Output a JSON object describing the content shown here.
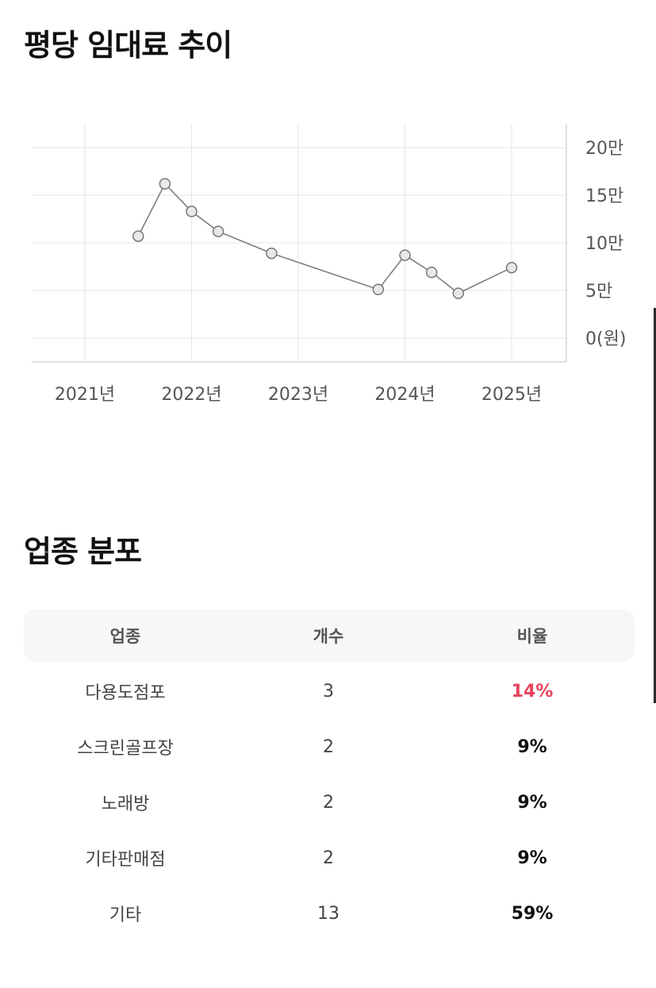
{
  "rent_section": {
    "title": "평당 임대료 추이"
  },
  "chart_data": {
    "type": "line",
    "x_tick_labels": [
      "2021년",
      "2022년",
      "2023년",
      "2024년",
      "2025년"
    ],
    "y_tick_labels": [
      "20만",
      "15만",
      "10만",
      "5만",
      "0(원)"
    ],
    "y_ticks": [
      200000,
      150000,
      100000,
      50000,
      0
    ],
    "y_axis_position": "right",
    "grid": true,
    "x": [
      "2021-07",
      "2021-10",
      "2022-01",
      "2022-04",
      "2022-10",
      "2023-10",
      "2024-01",
      "2024-04",
      "2024-07",
      "2025-01"
    ],
    "values": [
      107000,
      162000,
      133000,
      112000,
      89000,
      51000,
      87000,
      69000,
      47000,
      74000
    ],
    "colors": {
      "line": "#777777",
      "point_fill": "#e8e8e8",
      "grid": "#e6e6e6"
    }
  },
  "distribution_section": {
    "title": "업종 분포",
    "columns": [
      "업종",
      "개수",
      "비율"
    ],
    "rows": [
      {
        "category": "다용도점포",
        "count": "3",
        "ratio": "14%",
        "highlight": true
      },
      {
        "category": "스크린골프장",
        "count": "2",
        "ratio": "9%",
        "highlight": false
      },
      {
        "category": "노래방",
        "count": "2",
        "ratio": "9%",
        "highlight": false
      },
      {
        "category": "기타판매점",
        "count": "2",
        "ratio": "9%",
        "highlight": false
      },
      {
        "category": "기타",
        "count": "13",
        "ratio": "59%",
        "highlight": false
      }
    ],
    "colors": {
      "highlight": "#e8435a"
    }
  }
}
